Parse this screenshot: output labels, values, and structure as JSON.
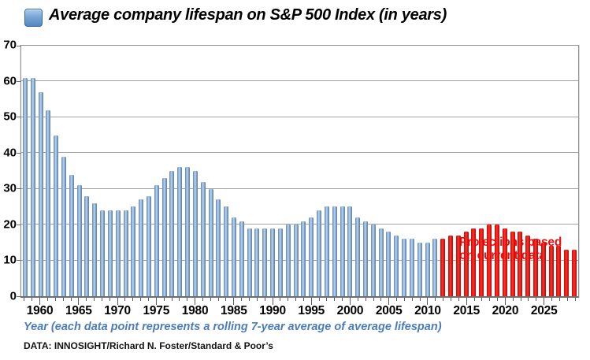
{
  "title": "Average company lifespan on S&P 500 Index (in years)",
  "annotation": {
    "line1": "Projections based",
    "line2": "on current data"
  },
  "footer": {
    "xaxis_note": "Year (each data point represents a rolling 7-year average of average lifespan)",
    "source": "DATA: INNOSIGHT/Richard N. Foster/Standard & Poor’s"
  },
  "colors": {
    "historical_bar": "#7fa2cb",
    "projection_bar": "#ee1511",
    "annotation_text": "#f20d0d",
    "xaxis_note_text": "#4a7cbd",
    "legend_swatch": "#78a6d6",
    "gridline": "#a2a2a2"
  },
  "chart_data": {
    "type": "bar",
    "title": "Average company lifespan on S&P 500 Index (in years)",
    "xlabel": "Year (each data point represents a rolling 7-year average of average lifespan)",
    "ylabel": "",
    "ylim": [
      0,
      70
    ],
    "yticks": [
      0,
      10,
      20,
      30,
      40,
      50,
      60,
      70
    ],
    "xtick_labels": [
      "1960",
      "1965",
      "1970",
      "1975",
      "1980",
      "1985",
      "1990",
      "1995",
      "2000",
      "2005",
      "2010",
      "2015",
      "2020",
      "2025"
    ],
    "grid": true,
    "legend_position": "in-plot annotation, red text above projection bars",
    "series": [
      {
        "name": "historical",
        "start_year": 1958,
        "values": [
          61,
          61,
          57,
          52,
          45,
          39,
          34,
          31,
          28,
          26,
          24,
          24,
          24,
          24,
          25,
          27,
          28,
          31,
          33,
          35,
          36,
          36,
          35,
          32,
          30,
          27,
          25,
          22,
          21,
          19,
          19,
          19,
          19,
          19,
          20,
          20,
          21,
          22,
          24,
          25,
          25,
          25,
          25,
          22,
          21,
          20,
          19,
          18,
          17,
          16,
          16,
          15,
          15,
          16
        ]
      },
      {
        "name": "projection",
        "start_year": 2012,
        "values": [
          16,
          17,
          17,
          18,
          19,
          19,
          20,
          20,
          19,
          18,
          18,
          17,
          16,
          15,
          14,
          14,
          13,
          13
        ]
      }
    ]
  }
}
